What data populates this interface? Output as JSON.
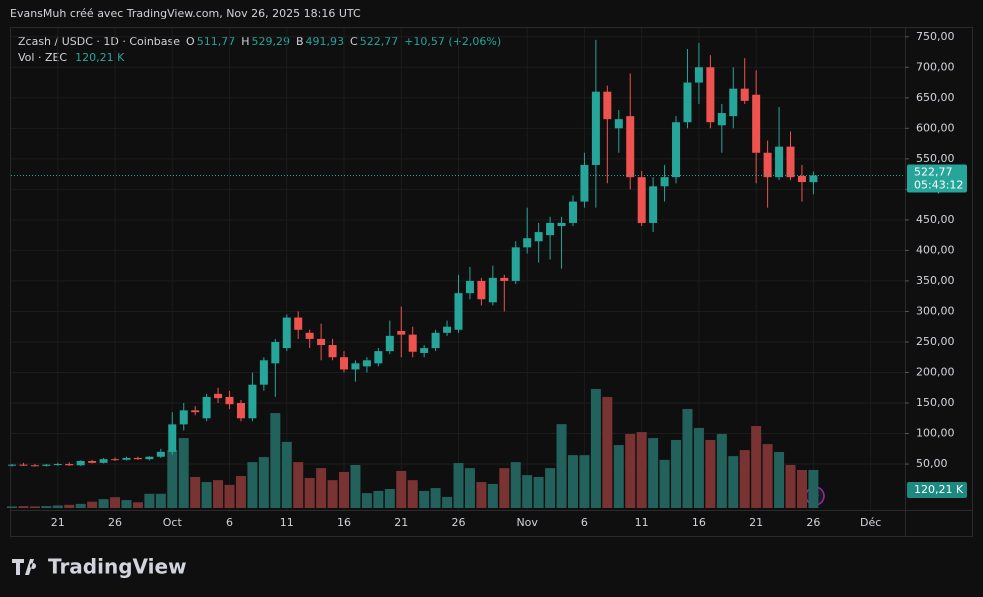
{
  "header": {
    "attribution": "EvansMuh créé avec TradingView.com, Nov 26, 2025 18:16 UTC"
  },
  "footer": {
    "logo": "TradingView"
  },
  "chart_data": {
    "type": "candlestick",
    "symbol": "Zcash / USDC · 1D · Coinbase",
    "ohlc_keys": [
      "O",
      "H",
      "B",
      "C"
    ],
    "ohlc_labels": [
      "511,77",
      "529,29",
      "491,93",
      "522,77"
    ],
    "change_label": "+10,57 (+2,06%)",
    "countdown": "05:43:12",
    "up_color": "#26a69a",
    "down_color": "#ef5350",
    "categories": [
      "2025-09-17",
      "2025-09-18",
      "2025-09-19",
      "2025-09-20",
      "2025-09-21",
      "2025-09-22",
      "2025-09-23",
      "2025-09-24",
      "2025-09-25",
      "2025-09-26",
      "2025-09-27",
      "2025-09-28",
      "2025-09-29",
      "2025-09-30",
      "2025-10-01",
      "2025-10-02",
      "2025-10-03",
      "2025-10-04",
      "2025-10-05",
      "2025-10-06",
      "2025-10-07",
      "2025-10-08",
      "2025-10-09",
      "2025-10-10",
      "2025-10-11",
      "2025-10-12",
      "2025-10-13",
      "2025-10-14",
      "2025-10-15",
      "2025-10-16",
      "2025-10-17",
      "2025-10-18",
      "2025-10-19",
      "2025-10-20",
      "2025-10-21",
      "2025-10-22",
      "2025-10-23",
      "2025-10-24",
      "2025-10-25",
      "2025-10-26",
      "2025-10-27",
      "2025-10-28",
      "2025-10-29",
      "2025-10-30",
      "2025-10-31",
      "2025-11-01",
      "2025-11-02",
      "2025-11-03",
      "2025-11-04",
      "2025-11-05",
      "2025-11-06",
      "2025-11-07",
      "2025-11-08",
      "2025-11-09",
      "2025-11-10",
      "2025-11-11",
      "2025-11-12",
      "2025-11-13",
      "2025-11-14",
      "2025-11-15",
      "2025-11-16",
      "2025-11-17",
      "2025-11-18",
      "2025-11-19",
      "2025-11-20",
      "2025-11-21",
      "2025-11-22",
      "2025-11-23",
      "2025-11-24",
      "2025-11-25",
      "2025-11-26"
    ],
    "series": [
      {
        "name": "Zcash / USDC",
        "open": [
          48,
          49,
          48,
          47,
          49,
          50,
          48,
          55,
          52,
          58,
          57,
          60,
          58,
          62,
          70,
          115,
          138,
          125,
          165,
          160,
          150,
          125,
          180,
          215,
          240,
          290,
          265,
          255,
          245,
          225,
          205,
          210,
          215,
          235,
          268,
          262,
          232,
          240,
          265,
          270,
          330,
          350,
          315,
          355,
          350,
          405,
          415,
          425,
          440,
          445,
          480,
          540,
          660,
          600,
          620,
          520,
          445,
          505,
          520,
          610,
          675,
          700,
          605,
          620,
          665,
          655,
          560,
          520,
          570,
          522,
          511.77
        ],
        "high": [
          50,
          52,
          50,
          50,
          52,
          53,
          56,
          57,
          60,
          61,
          62,
          62,
          63,
          75,
          135,
          150,
          145,
          165,
          175,
          170,
          155,
          200,
          225,
          255,
          295,
          300,
          270,
          280,
          255,
          235,
          220,
          225,
          240,
          285,
          308,
          275,
          245,
          270,
          285,
          360,
          373,
          355,
          375,
          360,
          415,
          470,
          445,
          455,
          455,
          490,
          560,
          745,
          670,
          630,
          690,
          530,
          520,
          540,
          620,
          730,
          740,
          720,
          640,
          700,
          715,
          695,
          580,
          635,
          595,
          540,
          529.29
        ],
        "low": [
          46,
          47,
          46,
          46,
          47,
          47,
          47,
          51,
          51,
          55,
          56,
          57,
          56,
          60,
          65,
          105,
          130,
          120,
          150,
          140,
          120,
          120,
          170,
          160,
          235,
          255,
          240,
          220,
          220,
          200,
          185,
          200,
          210,
          230,
          225,
          225,
          225,
          235,
          260,
          265,
          320,
          310,
          310,
          300,
          345,
          395,
          380,
          385,
          370,
          440,
          470,
          470,
          510,
          560,
          500,
          440,
          430,
          480,
          510,
          600,
          640,
          600,
          560,
          600,
          640,
          510,
          470,
          515,
          515,
          480,
          491.93
        ],
        "close": [
          49,
          48,
          47,
          49,
          50,
          48,
          55,
          52,
          58,
          57,
          60,
          58,
          62,
          70,
          115,
          138,
          135,
          160,
          158,
          148,
          125,
          180,
          220,
          250,
          290,
          270,
          255,
          245,
          225,
          205,
          215,
          220,
          235,
          260,
          262,
          234,
          240,
          265,
          275,
          330,
          350,
          320,
          355,
          350,
          405,
          420,
          430,
          445,
          445,
          480,
          540,
          660,
          615,
          615,
          520,
          445,
          505,
          520,
          610,
          675,
          700,
          610,
          625,
          665,
          645,
          560,
          520,
          570,
          520,
          512,
          522.77
        ]
      }
    ],
    "volume": {
      "name": "Vol · ZEC",
      "axis": "y2",
      "last_label": "120,21 K",
      "up_color": "#22615c",
      "down_color": "#7a3333",
      "values": [
        5,
        6,
        5,
        6,
        8,
        10,
        13,
        20,
        28,
        34,
        25,
        18,
        45,
        45,
        183,
        221,
        98,
        82,
        88,
        73,
        101,
        145,
        161,
        300,
        209,
        145,
        95,
        126,
        88,
        114,
        136,
        47,
        54,
        60,
        117,
        88,
        54,
        63,
        35,
        142,
        126,
        82,
        76,
        126,
        145,
        104,
        98,
        126,
        265,
        167,
        167,
        376,
        351,
        199,
        234,
        240,
        221,
        152,
        215,
        313,
        253,
        215,
        234,
        164,
        183,
        259,
        202,
        177,
        136,
        120,
        120.21
      ]
    },
    "xlim": [
      "2025-09-17",
      "2025-12-04"
    ],
    "xticks": [
      {
        "value": "2025-09-21",
        "label": "21"
      },
      {
        "value": "2025-09-26",
        "label": "26"
      },
      {
        "value": "2025-10-01",
        "label": "Oct"
      },
      {
        "value": "2025-10-06",
        "label": "6"
      },
      {
        "value": "2025-10-11",
        "label": "11"
      },
      {
        "value": "2025-10-16",
        "label": "16"
      },
      {
        "value": "2025-10-21",
        "label": "21"
      },
      {
        "value": "2025-10-26",
        "label": "26"
      },
      {
        "value": "2025-11-01",
        "label": "Nov"
      },
      {
        "value": "2025-11-06",
        "label": "6"
      },
      {
        "value": "2025-11-11",
        "label": "11"
      },
      {
        "value": "2025-11-16",
        "label": "16"
      },
      {
        "value": "2025-11-21",
        "label": "21"
      },
      {
        "value": "2025-11-26",
        "label": "26"
      },
      {
        "value": "2025-12-01",
        "label": "Déc"
      }
    ],
    "ylim": [
      -22,
      766
    ],
    "yticks": [
      {
        "value": 50,
        "label": "50,00"
      },
      {
        "value": 100,
        "label": "100,00"
      },
      {
        "value": 150,
        "label": "150,00"
      },
      {
        "value": 200,
        "label": "200,00"
      },
      {
        "value": 250,
        "label": "250,00"
      },
      {
        "value": 300,
        "label": "300,00"
      },
      {
        "value": 350,
        "label": "350,00"
      },
      {
        "value": 400,
        "label": "400,00"
      },
      {
        "value": 450,
        "label": "450,00"
      },
      {
        "value": 500,
        "label": "500,00"
      },
      {
        "value": 550,
        "label": "550,00"
      },
      {
        "value": 600,
        "label": "600,00"
      },
      {
        "value": 650,
        "label": "650,00"
      },
      {
        "value": 700,
        "label": "700,00"
      },
      {
        "value": 750,
        "label": "750,00"
      }
    ],
    "y2lim": [
      0,
      1520
    ],
    "grid": true
  }
}
